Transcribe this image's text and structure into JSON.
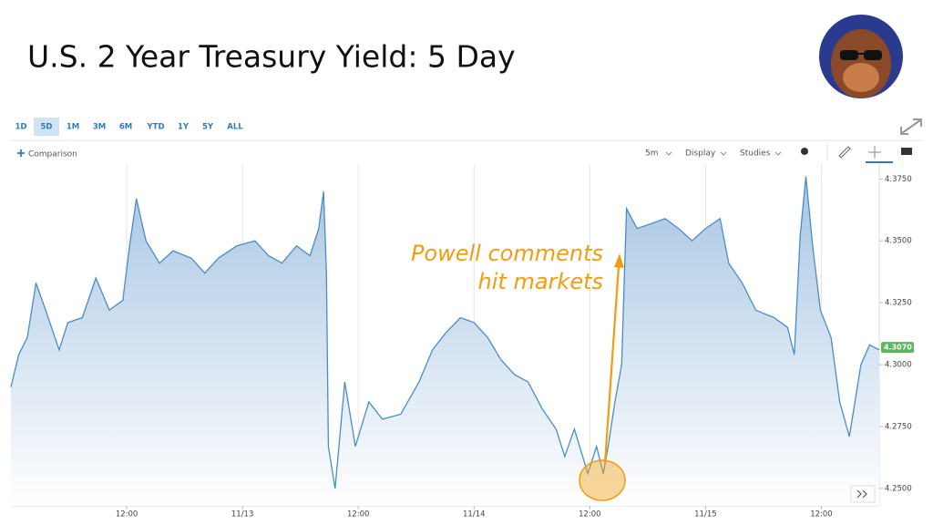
{
  "title": "U.S. 2 Year Treasury Yield: 5 Day",
  "toolbar": {
    "ranges": [
      "1D",
      "5D",
      "1M",
      "3M",
      "6M",
      "YTD",
      "1Y",
      "5Y",
      "ALL"
    ],
    "selected_range": "5D",
    "comparison": "Comparison",
    "interval": "5m",
    "display": "Display",
    "studies": "Studies"
  },
  "chart_data": {
    "type": "area",
    "annotation": [
      "Powell comments",
      "hit markets"
    ],
    "x": [
      0,
      0.8,
      1.7,
      2.6,
      3.6,
      5.0,
      5.9,
      7.4,
      8.8,
      10.2,
      11.6,
      12.3,
      13.0,
      14.0,
      15.4,
      16.8,
      18.7,
      20.1,
      21.5,
      23.4,
      25.3,
      26.7,
      28.1,
      29.6,
      31.0,
      31.9,
      32.4,
      32.7,
      32.9,
      33.6,
      34.6,
      35.7,
      37.1,
      38.5,
      40.4,
      42.3,
      43.7,
      45.1,
      46.6,
      48.0,
      49.4,
      50.8,
      52.2,
      53.6,
      55.1,
      56.5,
      57.4,
      58.4,
      59.8,
      60.7,
      61.4,
      61.9,
      62.6,
      63.3,
      63.8,
      64.9,
      66.4,
      67.8,
      69.2,
      70.6,
      72.0,
      73.5,
      74.4,
      75.8,
      77.2,
      79.1,
      80.5,
      81.2,
      81.8,
      82.4,
      83.1,
      83.9,
      85.0,
      85.9,
      86.9,
      88.1,
      89.0,
      90.0
    ],
    "series": [
      {
        "name": "U.S. 2 Year Treasury Yield",
        "color": "#4a8cc6",
        "values": [
          4.291,
          4.304,
          4.311,
          4.333,
          4.322,
          4.306,
          4.317,
          4.319,
          4.335,
          4.322,
          4.326,
          4.348,
          4.367,
          4.35,
          4.341,
          4.346,
          4.343,
          4.337,
          4.343,
          4.348,
          4.35,
          4.344,
          4.341,
          4.348,
          4.344,
          4.355,
          4.37,
          4.337,
          4.267,
          4.25,
          4.293,
          4.267,
          4.285,
          4.278,
          4.28,
          4.293,
          4.306,
          4.313,
          4.319,
          4.317,
          4.311,
          4.302,
          4.296,
          4.293,
          4.282,
          4.274,
          4.263,
          4.274,
          4.256,
          4.267,
          4.256,
          4.267,
          4.285,
          4.3,
          4.363,
          4.355,
          4.357,
          4.359,
          4.355,
          4.35,
          4.355,
          4.359,
          4.341,
          4.333,
          4.322,
          4.319,
          4.315,
          4.304,
          4.352,
          4.376,
          4.348,
          4.322,
          4.311,
          4.285,
          4.271,
          4.3,
          4.308,
          4.306
        ]
      }
    ],
    "xlim": [
      0,
      90
    ],
    "xticks": [
      {
        "value": 12,
        "label": "12:00"
      },
      {
        "value": 24,
        "label": "11/13"
      },
      {
        "value": 36,
        "label": "12:00"
      },
      {
        "value": 48,
        "label": "11/14"
      },
      {
        "value": 60,
        "label": "12:00"
      },
      {
        "value": 72,
        "label": "11/15"
      },
      {
        "value": 84,
        "label": "12:00"
      }
    ],
    "ylim": [
      4.243,
      4.381
    ],
    "yticks": [
      {
        "value": 4.25,
        "label": "4.2500"
      },
      {
        "value": 4.275,
        "label": "4.2750"
      },
      {
        "value": 4.3,
        "label": "4.3000"
      },
      {
        "value": 4.325,
        "label": "4.3250"
      },
      {
        "value": 4.35,
        "label": "4.3500"
      },
      {
        "value": 4.375,
        "label": "4.3750"
      }
    ],
    "last_price": {
      "value": 4.307,
      "label": "4.3070"
    },
    "grid": true
  }
}
